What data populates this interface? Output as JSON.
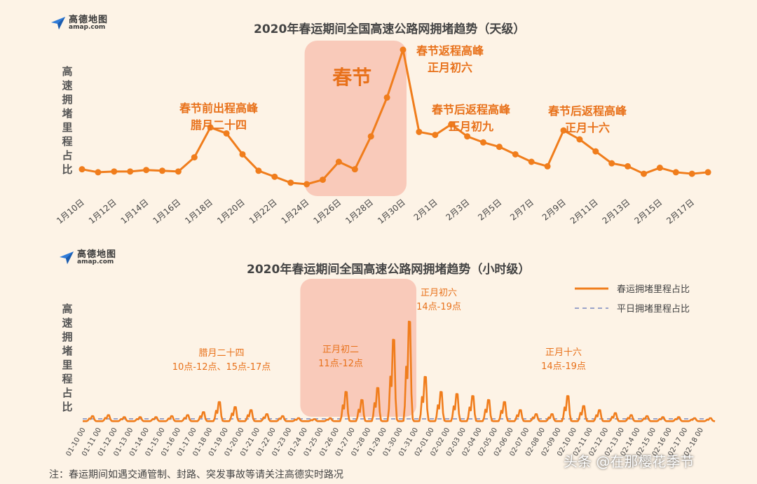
{
  "colors": {
    "line": "#f07d1c",
    "annotation": "#e8711a",
    "highlight": "#f7b8a6",
    "baseline": "#9aa3c9"
  },
  "logo": {
    "cn": "高德地图",
    "en": "amap.com",
    "icon": "amap-logo-icon"
  },
  "chart_data": [
    {
      "type": "line",
      "title": "2020年春运期间全国高速公路网拥堵趋势（天级）",
      "ylabel": "高速拥堵里程占比",
      "x": [
        "1月10日",
        "1月11日",
        "1月12日",
        "1月13日",
        "1月14日",
        "1月15日",
        "1月16日",
        "1月17日",
        "1月18日",
        "1月19日",
        "1月20日",
        "1月21日",
        "1月22日",
        "1月23日",
        "1月24日",
        "1月25日",
        "1月26日",
        "1月27日",
        "1月28日",
        "1月29日",
        "1月30日",
        "1月31日",
        "2月1日",
        "2月2日",
        "2月3日",
        "2月4日",
        "2月5日",
        "2月6日",
        "2月7日",
        "2月8日",
        "2月9日",
        "2月10日",
        "2月11日",
        "2月12日",
        "2月13日",
        "2月14日",
        "2月15日",
        "2月16日",
        "2月17日",
        "2月18日"
      ],
      "tick_labels": [
        "1月10日",
        "1月12日",
        "1月14日",
        "1月16日",
        "1月18日",
        "1月20日",
        "1月22日",
        "1月24日",
        "1月26日",
        "1月28日",
        "1月30日",
        "2月1日",
        "2月3日",
        "2月5日",
        "2月7日",
        "2月9日",
        "2月11日",
        "2月13日",
        "2月15日",
        "2月17日"
      ],
      "values": [
        20,
        18,
        18.5,
        18.5,
        19.5,
        19,
        18.5,
        28,
        48,
        44,
        30,
        19,
        15,
        11,
        10,
        13,
        25,
        20,
        42,
        68,
        100,
        45,
        43,
        50,
        42,
        38,
        35,
        30,
        25,
        22,
        46,
        40,
        32,
        24,
        22,
        17,
        21,
        18,
        17,
        18
      ],
      "highlight": {
        "label": "春节",
        "from": "1月24日",
        "to": "1月30日"
      },
      "annotations": [
        {
          "text": [
            "春节前出程高峰",
            "腊月二十四"
          ],
          "at": "1月18日"
        },
        {
          "text": [
            "春节返程高峰",
            "正月初六"
          ],
          "at": "1月30日"
        },
        {
          "text": [
            "春节后返程高峰",
            "正月初九"
          ],
          "at": "2月2日"
        },
        {
          "text": [
            "春节后返程高峰",
            "正月十六"
          ],
          "at": "2月9日"
        }
      ]
    },
    {
      "type": "line",
      "title": "2020年春运期间全国高速公路网拥堵趋势（小时级）",
      "ylabel": "高速拥堵里程占比",
      "tick_labels": [
        "01-10 00",
        "01-11 00",
        "01-12 00",
        "01-13 00",
        "01-14 00",
        "01-15 00",
        "01-16 00",
        "01-17 00",
        "01-18 00",
        "01-19 00",
        "01-20 00",
        "01-21 00",
        "01-22 00",
        "01-23 00",
        "01-24 00",
        "01-25 00",
        "01-26 00",
        "01-27 00",
        "01-28 00",
        "01-29 00",
        "01-30 00",
        "01-31 00",
        "02-01 00",
        "02-02 00",
        "02-03 00",
        "02-04 00",
        "02-05 00",
        "02-06 00",
        "02-07 00",
        "02-08 00",
        "02-09 00",
        "02-10 00",
        "02-11 00",
        "02-12 00",
        "02-13 00",
        "02-14 00",
        "02-15 00",
        "02-16 00",
        "02-17 00",
        "02-18 00"
      ],
      "daily_peak": [
        6,
        7,
        5,
        5,
        5,
        6,
        7,
        10,
        20,
        15,
        12,
        8,
        6,
        4,
        3,
        4,
        30,
        22,
        34,
        82,
        100,
        45,
        30,
        28,
        26,
        22,
        20,
        12,
        8,
        8,
        26,
        16,
        12,
        9,
        7,
        6,
        5,
        5,
        4,
        4
      ],
      "baseline": 3,
      "highlight": {
        "from": "01-24 00",
        "to": "01-30 00"
      },
      "series": [
        {
          "name": "春运拥堵里程占比",
          "style": "solid"
        },
        {
          "name": "平日拥堵里程占比",
          "style": "dashed"
        }
      ],
      "legend_position": "top-right",
      "annotations": [
        {
          "text": [
            "腊月二十四",
            "10点-12点、15点-17点"
          ],
          "at": "01-18 00"
        },
        {
          "text": [
            "正月初二",
            "11点-12点"
          ],
          "at": "01-26 00"
        },
        {
          "text": [
            "正月初六",
            "14点-19点"
          ],
          "at": "01-30 00"
        },
        {
          "text": [
            "正月十六",
            "14点-19点"
          ],
          "at": "02-09 00"
        }
      ]
    }
  ],
  "footer_note": "注：春运期间如遇交通管制、封路、突发事故等请关注高德实时路况",
  "watermark": "头条 @在那樱花季节"
}
